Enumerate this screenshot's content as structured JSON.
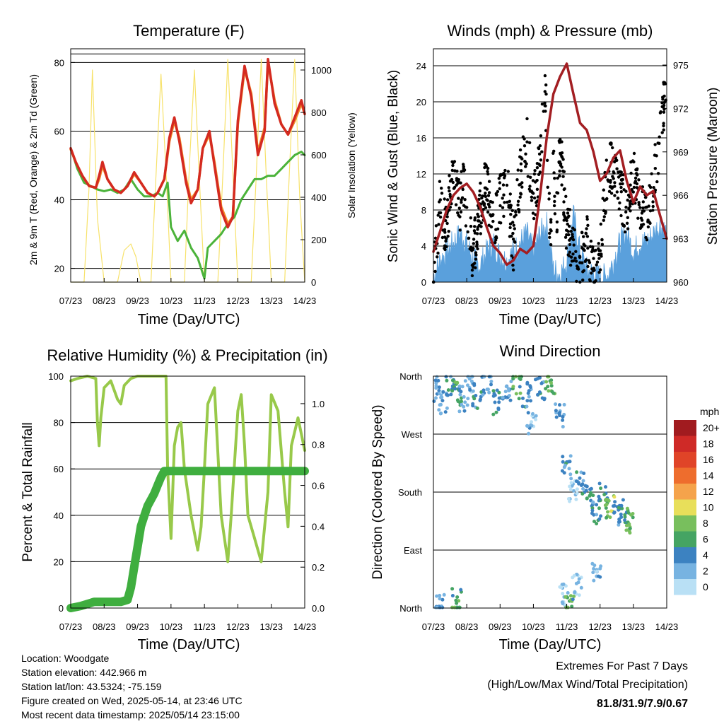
{
  "colors": {
    "temp2m": "#d42a20",
    "temp9m": "#f28c28",
    "dewpoint": "#4bb33a",
    "solar": "#f7e26b",
    "gust": "#000000",
    "wind": "#5aa0dc",
    "pressure": "#a31e22",
    "humidity": "#98c94a",
    "precip": "#3fae3f",
    "extremes": "#c6262e"
  },
  "ticks_time": [
    "07/23",
    "08/23",
    "09/23",
    "10/23",
    "11/23",
    "12/23",
    "13/23",
    "14/23"
  ],
  "footer": {
    "location": "Location: Woodgate",
    "elevation": "Station elevation: 442.966 m",
    "latlon": "Station lat/lon: 43.5324; -75.159",
    "created": "Figure created on Wed, 2025-05-14, at 23:46 UTC",
    "recent": "Most recent data timestamp: 2025/05/14 23:15:00"
  },
  "extremes": {
    "title": "Extremes For Past 7 Days",
    "subtitle": "(High/Low/Max Wind/Total Precipitation)",
    "values": "81.8/31.9/7.9/0.67"
  },
  "chart_data": [
    {
      "type": "line",
      "title": "Temperature (F)",
      "xlabel": "Time (Day/UTC)",
      "ylabel": "2m & 9m T (Red, Orange) & 2m Td (Green)",
      "ylabel_right": "Solar Insolation (Yellow)",
      "xlim": [
        0,
        7
      ],
      "ylim": [
        16,
        84
      ],
      "ylim_right": [
        0,
        1100
      ],
      "yticks": [
        20,
        40,
        60,
        80
      ],
      "yticks_right": [
        0,
        200,
        400,
        600,
        800,
        1000
      ],
      "gridlines": [
        20,
        40,
        60,
        80,
        82.5
      ],
      "series": [
        {
          "name": "2m T",
          "x": [
            0,
            0.15,
            0.35,
            0.55,
            0.75,
            0.85,
            0.95,
            1.1,
            1.3,
            1.5,
            1.7,
            1.9,
            2.1,
            2.3,
            2.5,
            2.6,
            2.8,
            2.95,
            3.1,
            3.25,
            3.45,
            3.6,
            3.8,
            3.95,
            4.15,
            4.3,
            4.5,
            4.7,
            4.85,
            5.0,
            5.2,
            5.4,
            5.6,
            5.8,
            5.9,
            6.1,
            6.3,
            6.5,
            6.7,
            6.9,
            7.0
          ],
          "values": [
            55,
            51,
            47,
            44,
            43.5,
            47,
            51,
            46,
            43,
            42,
            44,
            48,
            45,
            42,
            41,
            42,
            46,
            58,
            64,
            57,
            45,
            39,
            43,
            55,
            60,
            50,
            37,
            32,
            35,
            63,
            79,
            70,
            53,
            60,
            81,
            68,
            62,
            59,
            64,
            69,
            65
          ]
        },
        {
          "name": "9m T",
          "x": [
            0,
            0.15,
            0.35,
            0.55,
            0.75,
            0.85,
            0.95,
            1.1,
            1.3,
            1.5,
            1.7,
            1.9,
            2.1,
            2.3,
            2.5,
            2.6,
            2.8,
            2.95,
            3.1,
            3.25,
            3.45,
            3.6,
            3.8,
            3.95,
            4.15,
            4.3,
            4.5,
            4.7,
            4.85,
            5.0,
            5.2,
            5.4,
            5.6,
            5.8,
            5.9,
            6.1,
            6.3,
            6.5,
            6.7,
            6.9,
            7.0
          ],
          "values": [
            54.7,
            51,
            47,
            44,
            43.5,
            46,
            50,
            46,
            43,
            42,
            44,
            47.5,
            45,
            42,
            41,
            42,
            46,
            57,
            63,
            58,
            46,
            40,
            43,
            55,
            59,
            51,
            38,
            33,
            35,
            62,
            78,
            71,
            54,
            61,
            80,
            69,
            62,
            59,
            63,
            68,
            65
          ]
        },
        {
          "name": "2m Td",
          "x": [
            0,
            0.2,
            0.4,
            0.6,
            0.8,
            1.0,
            1.2,
            1.4,
            1.6,
            1.8,
            2.0,
            2.2,
            2.4,
            2.6,
            2.75,
            2.9,
            3.0,
            3.2,
            3.4,
            3.6,
            3.8,
            4.0,
            4.1,
            4.3,
            4.5,
            4.7,
            4.9,
            5.1,
            5.3,
            5.5,
            5.7,
            5.9,
            6.1,
            6.3,
            6.5,
            6.7,
            6.9,
            7.0
          ],
          "values": [
            55,
            49,
            45,
            44,
            43,
            42.5,
            43,
            42,
            43,
            46,
            43,
            41,
            41,
            42,
            41,
            45,
            32,
            28,
            31,
            26,
            23,
            17,
            26,
            28,
            30,
            33,
            35,
            40,
            43,
            46,
            46,
            47,
            47,
            49,
            51,
            53,
            54,
            53
          ]
        },
        {
          "name": "Solar Insolation",
          "axis": "right",
          "x": [
            0,
            0.4,
            0.55,
            0.65,
            0.8,
            1.0,
            1.4,
            1.6,
            1.8,
            1.95,
            2.1,
            2.4,
            2.55,
            2.7,
            2.85,
            3.0,
            3.4,
            3.55,
            3.7,
            3.85,
            4.0,
            4.4,
            4.55,
            4.7,
            4.85,
            5.0,
            5.4,
            5.55,
            5.7,
            5.85,
            6.0,
            6.4,
            6.55,
            6.7,
            6.85,
            7.0
          ],
          "values": [
            0,
            0,
            450,
            1000,
            300,
            0,
            0,
            150,
            180,
            120,
            0,
            0,
            500,
            980,
            520,
            0,
            0,
            550,
            1000,
            480,
            0,
            0,
            500,
            1050,
            520,
            0,
            0,
            500,
            1050,
            500,
            0,
            0,
            550,
            1050,
            400,
            0
          ]
        }
      ]
    },
    {
      "type": "scatter",
      "title": "Winds (mph) & Pressure (mb)",
      "xlabel": "Time (Day/UTC)",
      "ylabel": "Sonic Wind & Gust (Blue, Black)",
      "ylabel_right": "Station Pressure (Maroon)",
      "xlim": [
        0,
        7
      ],
      "ylim": [
        0,
        24
      ],
      "ylim_right": [
        960,
        975
      ],
      "yticks": [
        0,
        4,
        8,
        12,
        16,
        20,
        24
      ],
      "yticks_right": [
        960,
        963,
        966,
        969,
        972,
        975
      ],
      "series": [
        {
          "name": "Gust",
          "x": [
            0.0,
            0.1,
            0.2,
            0.3,
            0.4,
            0.5,
            0.6,
            0.7,
            0.8,
            0.9,
            1.0,
            1.2,
            1.4,
            1.6,
            1.8,
            2.0,
            2.2,
            2.4,
            2.6,
            2.8,
            3.0,
            3.2,
            3.35,
            3.5,
            3.6,
            3.7,
            3.8,
            4.0,
            4.2,
            4.4,
            4.6,
            4.8,
            5.0,
            5.2,
            5.4,
            5.6,
            5.8,
            6.0,
            6.2,
            6.4,
            6.6,
            6.8,
            6.95
          ],
          "values": [
            0.5,
            4,
            9,
            7,
            5,
            10,
            13,
            11,
            8,
            12,
            6,
            3,
            8,
            11,
            6,
            9,
            11,
            4,
            12,
            16,
            9,
            13,
            22.8,
            4,
            12,
            8,
            15,
            6,
            4,
            2,
            5,
            1,
            3,
            12,
            13,
            10,
            8,
            12,
            9,
            7,
            11,
            16,
            21
          ]
        },
        {
          "name": "Wind",
          "x": [
            0.0,
            0.2,
            0.4,
            0.6,
            0.8,
            1.0,
            1.2,
            1.4,
            1.6,
            1.8,
            2.0,
            2.2,
            2.4,
            2.6,
            2.8,
            3.0,
            3.2,
            3.4,
            3.6,
            3.8,
            4.0,
            4.2,
            4.4,
            4.6,
            4.8,
            5.0,
            5.2,
            5.4,
            5.6,
            5.8,
            6.0,
            6.2,
            6.4,
            6.6,
            6.8,
            7.0
          ],
          "values": [
            0.3,
            2,
            3,
            4,
            5,
            4,
            2,
            1.5,
            3,
            4,
            2.5,
            2,
            3,
            4,
            5,
            3,
            5,
            6,
            1,
            0.5,
            2,
            7,
            3,
            1,
            0.5,
            0.3,
            0.2,
            2,
            4,
            5,
            3,
            4,
            4,
            5,
            6,
            5
          ]
        },
        {
          "name": "Pressure",
          "axis": "right",
          "x": [
            0,
            0.2,
            0.4,
            0.6,
            0.8,
            1.0,
            1.2,
            1.4,
            1.6,
            1.8,
            2.0,
            2.2,
            2.4,
            2.6,
            2.8,
            3.0,
            3.2,
            3.4,
            3.6,
            3.8,
            4.0,
            4.2,
            4.4,
            4.6,
            4.8,
            5.0,
            5.2,
            5.4,
            5.6,
            5.8,
            6.0,
            6.2,
            6.4,
            6.6,
            6.8,
            7.0
          ],
          "values": [
            962.1,
            963.5,
            965,
            966,
            966.5,
            966.8,
            966.2,
            965.2,
            963.8,
            962.5,
            962,
            961.2,
            961.5,
            962.3,
            962,
            962.5,
            966,
            970,
            973,
            974.2,
            975.1,
            973,
            971,
            970.5,
            969,
            967,
            967.5,
            968.6,
            969.1,
            967,
            965.5,
            966.6,
            966,
            966.3,
            964.6,
            963
          ]
        }
      ]
    },
    {
      "type": "line",
      "title": "Relative Humidity (%) & Precipitation (in)",
      "xlabel": "Time (Day/UTC)",
      "ylabel": "Percent & Total Rainfall",
      "xlim": [
        0,
        7
      ],
      "ylim": [
        0,
        100
      ],
      "ylim_right": [
        0,
        1.1
      ],
      "yticks": [
        0,
        20,
        40,
        60,
        80,
        100
      ],
      "yticks_right": [
        0.0,
        0.2,
        0.4,
        0.6,
        0.8,
        1.0
      ],
      "series": [
        {
          "name": "Relative Humidity",
          "x": [
            0,
            0.2,
            0.5,
            0.75,
            0.8,
            0.85,
            0.9,
            1.0,
            1.2,
            1.4,
            1.5,
            1.6,
            1.8,
            2.0,
            2.2,
            2.5,
            2.85,
            2.9,
            3.0,
            3.1,
            3.2,
            3.3,
            3.4,
            3.6,
            3.8,
            3.9,
            4.0,
            4.1,
            4.3,
            4.5,
            4.7,
            4.8,
            5.0,
            5.1,
            5.2,
            5.3,
            5.5,
            5.7,
            5.9,
            6.0,
            6.2,
            6.4,
            6.5,
            6.6,
            6.8,
            7.0
          ],
          "values": [
            98,
            99,
            100,
            99,
            80,
            70,
            82,
            95,
            98,
            90,
            88,
            96,
            99,
            100,
            100,
            100,
            100,
            60,
            30,
            70,
            78,
            80,
            60,
            40,
            25,
            35,
            60,
            88,
            95,
            40,
            20,
            40,
            85,
            92,
            70,
            40,
            30,
            20,
            50,
            92,
            85,
            50,
            35,
            70,
            82,
            68
          ]
        },
        {
          "name": "Total Precipitation",
          "axis": "right",
          "x": [
            0,
            0.3,
            0.5,
            0.7,
            1.0,
            1.5,
            1.7,
            1.8,
            1.9,
            2.0,
            2.1,
            2.2,
            2.3,
            2.4,
            2.5,
            2.6,
            2.7,
            2.8,
            3.0,
            4.0,
            5.0,
            6.0,
            7.0
          ],
          "values": [
            0,
            0.01,
            0.02,
            0.03,
            0.03,
            0.03,
            0.04,
            0.1,
            0.2,
            0.3,
            0.4,
            0.45,
            0.5,
            0.53,
            0.56,
            0.6,
            0.64,
            0.67,
            0.67,
            0.67,
            0.67,
            0.67,
            0.67
          ]
        }
      ]
    },
    {
      "type": "scatter",
      "title": "Wind Direction",
      "xlabel": "Time (Day/UTC)",
      "ylabel": "Direction (Colored By Speed)",
      "xlim": [
        0,
        7
      ],
      "ylim": [
        0,
        360
      ],
      "yticks": [
        0,
        90,
        180,
        270,
        360
      ],
      "ytick_labels": [
        "North",
        "East",
        "South",
        "West",
        "North"
      ],
      "legend": {
        "title": "mph",
        "labels": [
          "20+",
          "18",
          "16",
          "14",
          "12",
          "10",
          "8",
          "6",
          "4",
          "2",
          "0"
        ],
        "colors": [
          "#a11b1f",
          "#cf2a27",
          "#e04428",
          "#ee6d2d",
          "#f5a34b",
          "#e8df5a",
          "#78bf5d",
          "#45a463",
          "#3c82c1",
          "#77b3e1",
          "#b9e0f5"
        ]
      },
      "points": [
        {
          "x": 0.1,
          "y": 340,
          "speed": 3
        },
        {
          "x": 0.3,
          "y": 320,
          "speed": 2
        },
        {
          "x": 0.5,
          "y": 350,
          "speed": 4
        },
        {
          "x": 0.7,
          "y": 335,
          "speed": 6
        },
        {
          "x": 0.9,
          "y": 325,
          "speed": 3
        },
        {
          "x": 1.1,
          "y": 355,
          "speed": 2
        },
        {
          "x": 1.3,
          "y": 330,
          "speed": 4
        },
        {
          "x": 1.6,
          "y": 345,
          "speed": 3
        },
        {
          "x": 1.9,
          "y": 320,
          "speed": 5
        },
        {
          "x": 2.2,
          "y": 335,
          "speed": 3
        },
        {
          "x": 2.5,
          "y": 345,
          "speed": 6
        },
        {
          "x": 2.8,
          "y": 330,
          "speed": 4
        },
        {
          "x": 2.95,
          "y": 285,
          "speed": 2
        },
        {
          "x": 3.2,
          "y": 340,
          "speed": 4
        },
        {
          "x": 3.5,
          "y": 350,
          "speed": 7
        },
        {
          "x": 3.8,
          "y": 300,
          "speed": 3
        },
        {
          "x": 4.0,
          "y": 220,
          "speed": 4
        },
        {
          "x": 4.2,
          "y": 180,
          "speed": 1
        },
        {
          "x": 4.4,
          "y": 195,
          "speed": 4
        },
        {
          "x": 4.7,
          "y": 170,
          "speed": 5
        },
        {
          "x": 4.9,
          "y": 150,
          "speed": 4
        },
        {
          "x": 5.1,
          "y": 175,
          "speed": 5
        },
        {
          "x": 5.3,
          "y": 160,
          "speed": 8
        },
        {
          "x": 5.5,
          "y": 145,
          "speed": 4
        },
        {
          "x": 5.7,
          "y": 150,
          "speed": 5
        },
        {
          "x": 5.9,
          "y": 135,
          "speed": 7
        },
        {
          "x": 3.9,
          "y": 20,
          "speed": 1
        },
        {
          "x": 4.1,
          "y": 5,
          "speed": 6
        },
        {
          "x": 4.3,
          "y": 40,
          "speed": 1
        },
        {
          "x": 4.9,
          "y": 60,
          "speed": 2
        },
        {
          "x": 0.2,
          "y": 5,
          "speed": 3
        },
        {
          "x": 0.7,
          "y": 10,
          "speed": 6
        }
      ]
    }
  ]
}
